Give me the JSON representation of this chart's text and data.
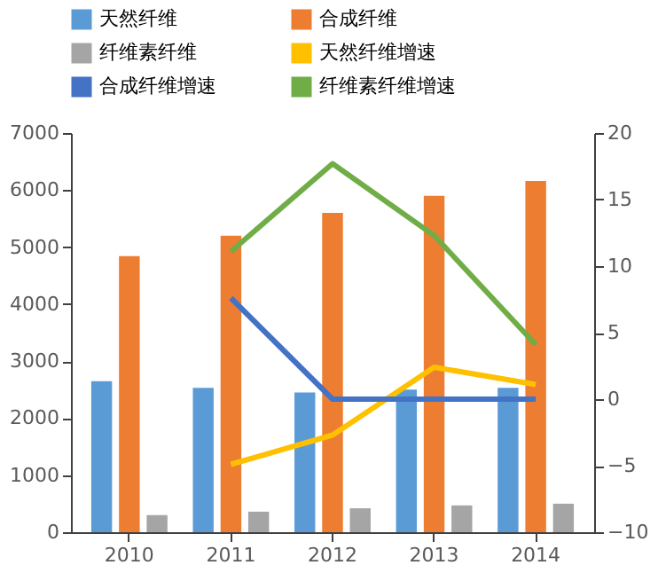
{
  "chart_data": {
    "type": "bar",
    "categories": [
      "2010",
      "2011",
      "2012",
      "2013",
      "2014"
    ],
    "series": [
      {
        "name": "天然纤维",
        "color": "#5b9bd5",
        "values": [
          2650,
          2530,
          2450,
          2500,
          2530
        ]
      },
      {
        "name": "合成纤维",
        "color": "#ed7d31",
        "values": [
          4840,
          5200,
          5600,
          5900,
          6160
        ]
      },
      {
        "name": "纤维素纤维",
        "color": "#a5a5a5",
        "values": [
          300,
          360,
          420,
          470,
          500
        ]
      },
      {
        "name": "天然纤维增速",
        "type": "line",
        "axis": "y2",
        "color": "#ffc000",
        "values": [
          null,
          -4.9,
          -2.7,
          2.4,
          1.1
        ]
      },
      {
        "name": "合成纤维增速",
        "type": "line",
        "axis": "y2",
        "color": "#4472c4",
        "values": [
          null,
          7.6,
          0,
          0,
          0
        ]
      },
      {
        "name": "纤维素纤维增速",
        "type": "line",
        "axis": "y2",
        "color": "#70ad47",
        "values": [
          null,
          11.1,
          17.7,
          12.3,
          4.1
        ]
      }
    ],
    "ylim": [
      0,
      7000
    ],
    "yticks": [
      0,
      1000,
      2000,
      3000,
      4000,
      5000,
      6000,
      7000
    ],
    "y2lim": [
      -10,
      20
    ],
    "y2ticks": [
      -10,
      -5,
      0,
      5,
      10,
      15,
      20
    ],
    "grid": false,
    "legend": "top",
    "marker": "none",
    "line_style": "solid"
  }
}
